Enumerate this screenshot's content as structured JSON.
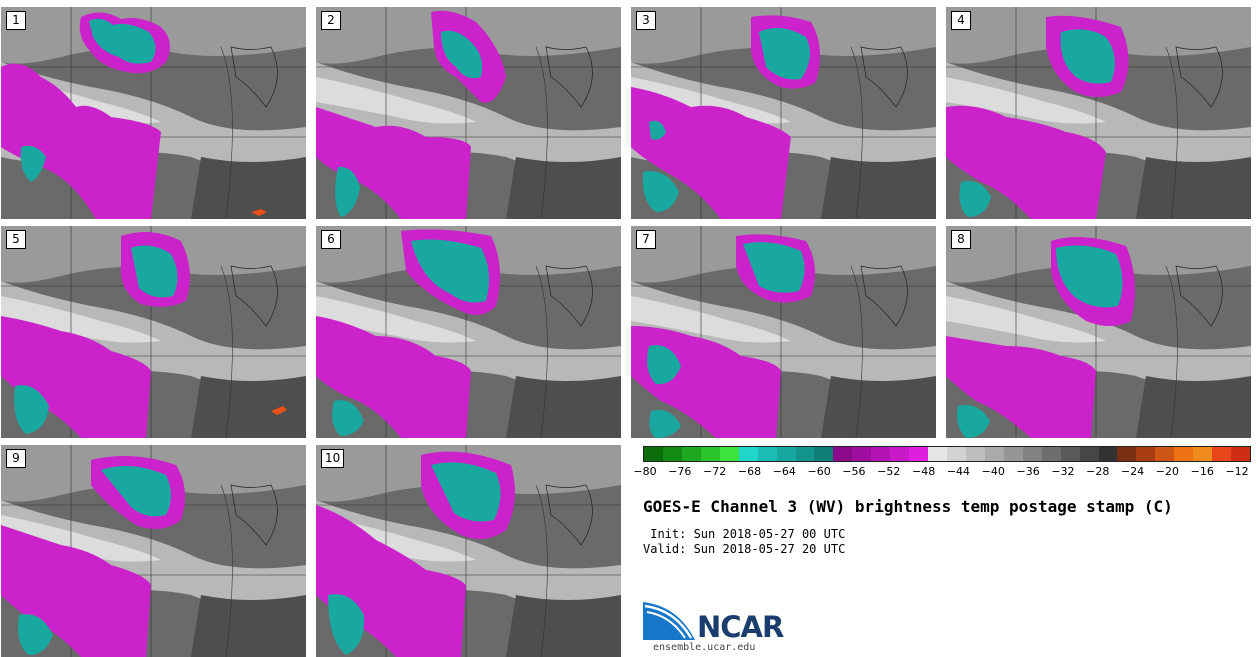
{
  "panels": [
    {
      "label": "1"
    },
    {
      "label": "2"
    },
    {
      "label": "3"
    },
    {
      "label": "4"
    },
    {
      "label": "5"
    },
    {
      "label": "6"
    },
    {
      "label": "7"
    },
    {
      "label": "8"
    },
    {
      "label": "9"
    },
    {
      "label": "10"
    }
  ],
  "colorbar": {
    "colors": [
      "#0b6e0b",
      "#138a13",
      "#1fa81f",
      "#2bc52b",
      "#3ee23e",
      "#1ed6c9",
      "#19bdb3",
      "#16a8a0",
      "#12938c",
      "#0f7e78",
      "#8a0a8a",
      "#a00ea0",
      "#b414b4",
      "#c91ac9",
      "#dd20dd",
      "#e6e6e6",
      "#d2d2d2",
      "#bebebe",
      "#aaaaaa",
      "#969696",
      "#828282",
      "#6e6e6e",
      "#5a5a5a",
      "#464646",
      "#323232",
      "#7a2e12",
      "#a83d12",
      "#cc5514",
      "#ec7214",
      "#f08c1e",
      "#e8461a",
      "#d02e12"
    ],
    "ticks": [
      "-80",
      "-76",
      "-72",
      "-68",
      "-64",
      "-60",
      "-56",
      "-52",
      "-48",
      "-44",
      "-40",
      "-36",
      "-32",
      "-28",
      "-24",
      "-20",
      "-16",
      "-12"
    ]
  },
  "title": "GOES-E Channel 3 (WV) brightness temp postage stamp (C)",
  "init": " Init: Sun 2018-05-27 00 UTC",
  "valid": "Valid: Sun 2018-05-27 20 UTC",
  "logo": {
    "name": "NCAR",
    "url": "ensemble.ucar.edu"
  }
}
